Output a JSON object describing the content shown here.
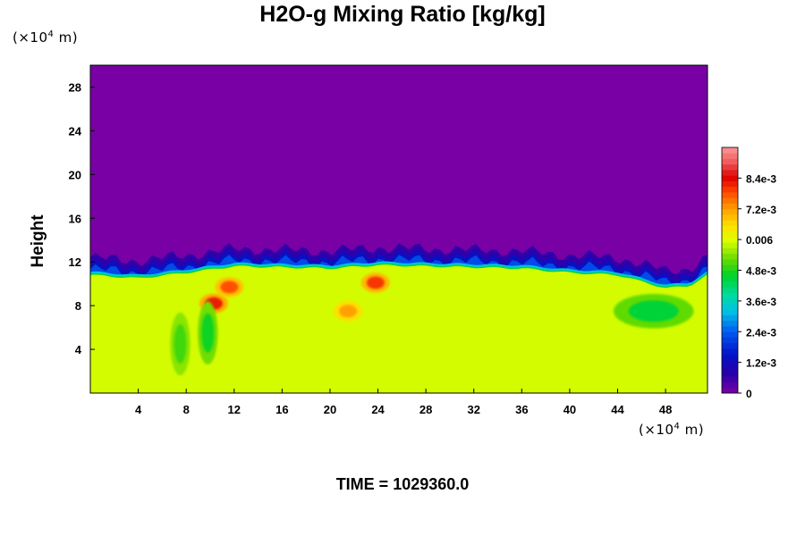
{
  "chart_data": {
    "type": "heatmap",
    "title": "H2O-g Mixing Ratio [kg/kg]",
    "ylabel": "Height",
    "xlabel": "",
    "x_unit": {
      "prefix": "(×10",
      "exp": "4",
      "suffix": " m)"
    },
    "y_unit": {
      "prefix": "(×10",
      "exp": "4",
      "suffix": " m)"
    },
    "xlim": [
      0,
      51.5
    ],
    "ylim": [
      0,
      30
    ],
    "x_ticks": [
      "4",
      "8",
      "12",
      "16",
      "20",
      "24",
      "28",
      "32",
      "36",
      "40",
      "44",
      "48"
    ],
    "y_ticks": [
      "4",
      "8",
      "12",
      "16",
      "20",
      "24",
      "28"
    ],
    "colorbar": {
      "range": [
        0,
        0.0096
      ],
      "tick_labels": [
        "0",
        "1.2e-3",
        "2.4e-3",
        "3.6e-3",
        "4.8e-3",
        "0.006",
        "7.2e-3",
        "8.4e-3"
      ],
      "tick_values": [
        0,
        0.0012,
        0.0024,
        0.0036,
        0.0048,
        0.006,
        0.0072,
        0.0084
      ]
    },
    "background_value": 0.0059,
    "upper_value": 0,
    "moist_top_height_profile": {
      "x": [
        0,
        4,
        8,
        10,
        12,
        16,
        20,
        24,
        28,
        32,
        36,
        40,
        44,
        48,
        50,
        51.5
      ],
      "height": [
        10.8,
        10.5,
        11.0,
        11.3,
        11.6,
        11.5,
        11.4,
        11.7,
        11.6,
        11.5,
        11.4,
        11.0,
        10.8,
        9.6,
        9.8,
        10.8
      ]
    },
    "features": [
      {
        "kind": "moist-plume",
        "x": 10.3,
        "height": 8.2,
        "value": 0.0082
      },
      {
        "kind": "moist-plume",
        "x": 11.6,
        "height": 9.7,
        "value": 0.0078
      },
      {
        "kind": "moist-plume",
        "x": 21.5,
        "height": 7.5,
        "value": 0.0072
      },
      {
        "kind": "moist-plume",
        "x": 23.8,
        "height": 10.1,
        "value": 0.008
      },
      {
        "kind": "dry-filament",
        "x": 9.8,
        "height": 5.5,
        "value": 0.0047
      },
      {
        "kind": "dry-filament",
        "x": 7.5,
        "height": 4.5,
        "value": 0.005
      },
      {
        "kind": "dry-layer",
        "x": 47.0,
        "height": 7.5,
        "value": 0.0045
      }
    ]
  },
  "time_label": "TIME = 1029360.0"
}
